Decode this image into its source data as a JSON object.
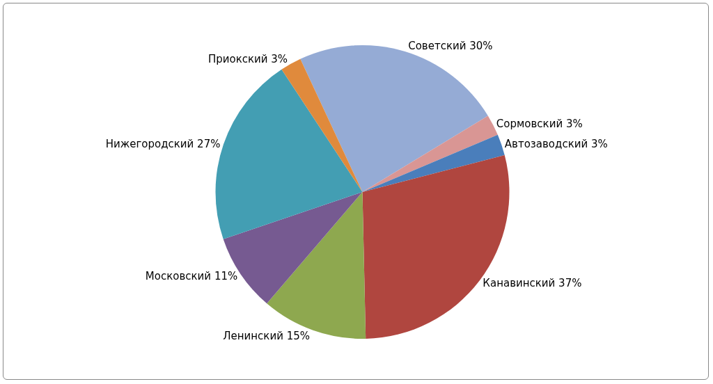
{
  "chart_data": {
    "type": "pie",
    "categories": [
      "Советский",
      "Сормовский",
      "Автозаводский",
      "Канавинский",
      "Ленинский",
      "Московский",
      "Нижегородский",
      "Приокский"
    ],
    "values": [
      30,
      3,
      3,
      37,
      15,
      11,
      27,
      3
    ],
    "value_labels": [
      "30%",
      "3%",
      "3%",
      "37%",
      "15%",
      "11%",
      "27%",
      "3%"
    ],
    "colors": [
      "#95abd5",
      "#d99694",
      "#4a7ebb",
      "#b0463f",
      "#8ea84f",
      "#765a91",
      "#439eb3",
      "#e08a3c"
    ],
    "legend": false
  }
}
